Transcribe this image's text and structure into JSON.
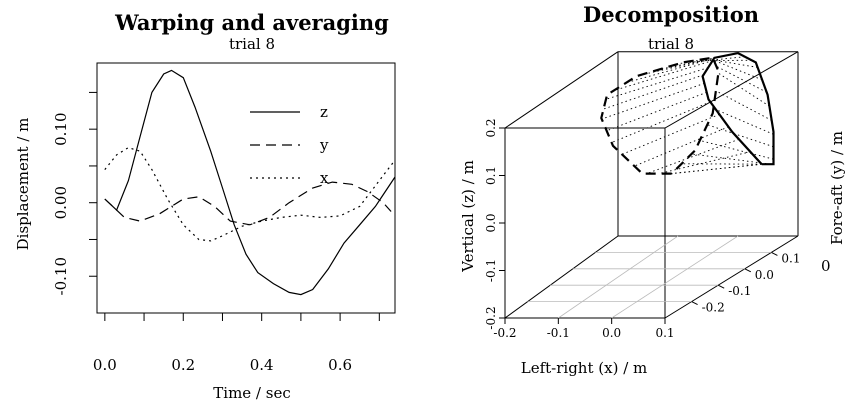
{
  "chart_data": [
    {
      "type": "line",
      "title": "Warping and averaging",
      "subtitle": "trial 8",
      "xlabel": "Time / sec",
      "ylabel": "Displacement / m",
      "xlim": [
        -0.02,
        0.74
      ],
      "ylim": [
        -0.15,
        0.19
      ],
      "xticks": [
        "0.0",
        "0.2",
        "0.4",
        "0.6"
      ],
      "yticks": [
        "-0.10",
        "0.00",
        "0.10"
      ],
      "legend_position": "top-right",
      "series": [
        {
          "name": "z",
          "dash": "solid",
          "points": [
            [
              0.0,
              0.005
            ],
            [
              0.03,
              -0.01
            ],
            [
              0.06,
              0.03
            ],
            [
              0.09,
              0.09
            ],
            [
              0.12,
              0.15
            ],
            [
              0.15,
              0.175
            ],
            [
              0.17,
              0.18
            ],
            [
              0.2,
              0.17
            ],
            [
              0.23,
              0.13
            ],
            [
              0.27,
              0.07
            ],
            [
              0.3,
              0.02
            ],
            [
              0.33,
              -0.03
            ],
            [
              0.36,
              -0.07
            ],
            [
              0.39,
              -0.095
            ],
            [
              0.43,
              -0.11
            ],
            [
              0.47,
              -0.122
            ],
            [
              0.5,
              -0.125
            ],
            [
              0.53,
              -0.118
            ],
            [
              0.57,
              -0.09
            ],
            [
              0.61,
              -0.055
            ],
            [
              0.65,
              -0.03
            ],
            [
              0.69,
              -0.005
            ],
            [
              0.74,
              0.035
            ]
          ]
        },
        {
          "name": "y",
          "dash": "dashed",
          "points": [
            [
              0.0,
              0.005
            ],
            [
              0.05,
              -0.02
            ],
            [
              0.09,
              -0.025
            ],
            [
              0.14,
              -0.015
            ],
            [
              0.2,
              0.005
            ],
            [
              0.24,
              0.008
            ],
            [
              0.28,
              -0.005
            ],
            [
              0.32,
              -0.025
            ],
            [
              0.37,
              -0.03
            ],
            [
              0.42,
              -0.02
            ],
            [
              0.47,
              0.0
            ],
            [
              0.53,
              0.02
            ],
            [
              0.58,
              0.028
            ],
            [
              0.63,
              0.025
            ],
            [
              0.67,
              0.015
            ],
            [
              0.71,
              0.0
            ],
            [
              0.73,
              -0.012
            ]
          ]
        },
        {
          "name": "x",
          "dash": "dotted",
          "points": [
            [
              0.0,
              0.045
            ],
            [
              0.03,
              0.065
            ],
            [
              0.06,
              0.075
            ],
            [
              0.09,
              0.07
            ],
            [
              0.12,
              0.045
            ],
            [
              0.16,
              0.005
            ],
            [
              0.2,
              -0.03
            ],
            [
              0.24,
              -0.05
            ],
            [
              0.27,
              -0.052
            ],
            [
              0.3,
              -0.045
            ],
            [
              0.35,
              -0.032
            ],
            [
              0.4,
              -0.025
            ],
            [
              0.45,
              -0.02
            ],
            [
              0.5,
              -0.017
            ],
            [
              0.55,
              -0.02
            ],
            [
              0.6,
              -0.018
            ],
            [
              0.65,
              -0.005
            ],
            [
              0.7,
              0.03
            ],
            [
              0.74,
              0.058
            ]
          ]
        }
      ]
    },
    {
      "type": "line",
      "title": "Decomposition",
      "subtitle": "trial 8",
      "xlabel": "Left-right (x) / m",
      "ylabel": "Fore-aft (y) / m",
      "zlabel": "Vertical (z) / m",
      "xlim": [
        -0.2,
        0.1
      ],
      "ylim": [
        -0.3,
        0.2
      ],
      "zlim": [
        -0.2,
        0.2
      ],
      "xticks": [
        "-0.2",
        "-0.1",
        "0.0",
        "0.1"
      ],
      "yticks": [
        "-0.2",
        "-0.1",
        "0.0",
        "0.1"
      ],
      "zticks": [
        "-0.2",
        "-0.1",
        "0.0",
        "0.1",
        "0.2"
      ],
      "series": [
        {
          "name": "",
          "dash": "solid",
          "points": [
            [
              0.07,
              0.13,
              -0.02
            ],
            [
              0.02,
              0.13,
              0.05
            ],
            [
              -0.02,
              0.13,
              0.12
            ],
            [
              -0.03,
              0.13,
              0.17
            ],
            [
              -0.01,
              0.13,
              0.21
            ],
            [
              0.03,
              0.13,
              0.22
            ],
            [
              0.06,
              0.13,
              0.2
            ],
            [
              0.08,
              0.13,
              0.13
            ],
            [
              0.09,
              0.13,
              0.05
            ],
            [
              0.09,
              0.13,
              -0.02
            ],
            [
              0.07,
              0.13,
              -0.02
            ]
          ]
        },
        {
          "name": "",
          "dash": "dashed",
          "points": [
            [
              -0.07,
              0.1,
              -0.03
            ],
            [
              -0.12,
              0.1,
              -0.03
            ],
            [
              -0.17,
              0.1,
              0.03
            ],
            [
              -0.19,
              0.1,
              0.09
            ],
            [
              -0.18,
              0.1,
              0.14
            ],
            [
              -0.13,
              0.1,
              0.18
            ],
            [
              -0.05,
              0.1,
              0.21
            ],
            [
              0.0,
              0.1,
              0.22
            ],
            [
              0.01,
              0.1,
              0.19
            ],
            [
              0.0,
              0.1,
              0.1
            ],
            [
              -0.03,
              0.1,
              0.02
            ],
            [
              -0.07,
              0.1,
              -0.03
            ]
          ]
        }
      ]
    }
  ]
}
